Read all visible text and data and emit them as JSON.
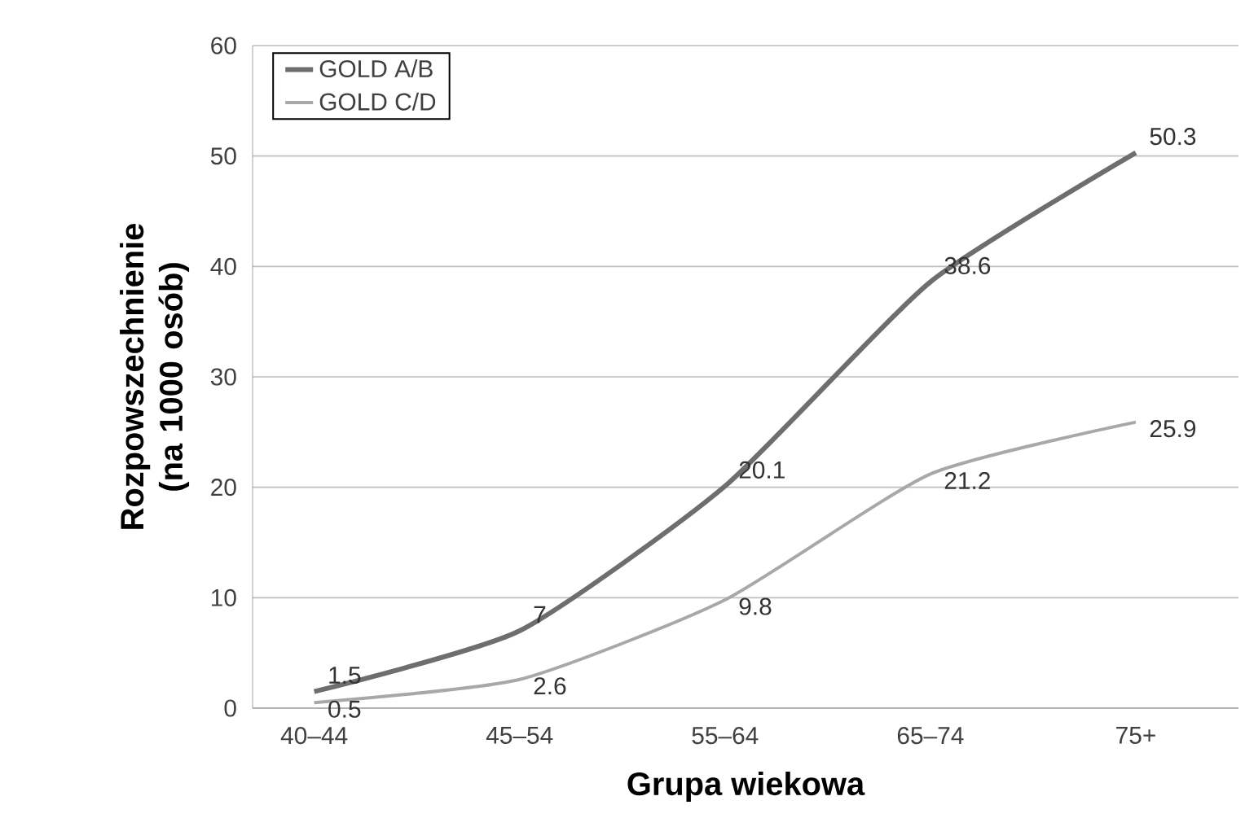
{
  "chart_data": {
    "type": "line",
    "xlabel": "Grupa wiekowa",
    "ylabel": "Rozpowszechnienie (na 1000 osób)",
    "categories": [
      "40–44",
      "45–54",
      "55–64",
      "65–74",
      "75+"
    ],
    "series": [
      {
        "name": "GOLD A/B",
        "color": "#6e6e6e",
        "values": [
          1.5,
          7,
          20.1,
          38.6,
          50.3
        ]
      },
      {
        "name": "GOLD C/D",
        "color": "#a8a8a8",
        "values": [
          0.5,
          2.6,
          9.8,
          21.2,
          25.9
        ]
      }
    ],
    "ylim": [
      0,
      60
    ],
    "yticks": [
      0,
      10,
      20,
      30,
      40,
      50,
      60
    ],
    "grid": "y",
    "legend": "top left",
    "data_labels": true,
    "marker": "none",
    "line_style": "solid"
  }
}
